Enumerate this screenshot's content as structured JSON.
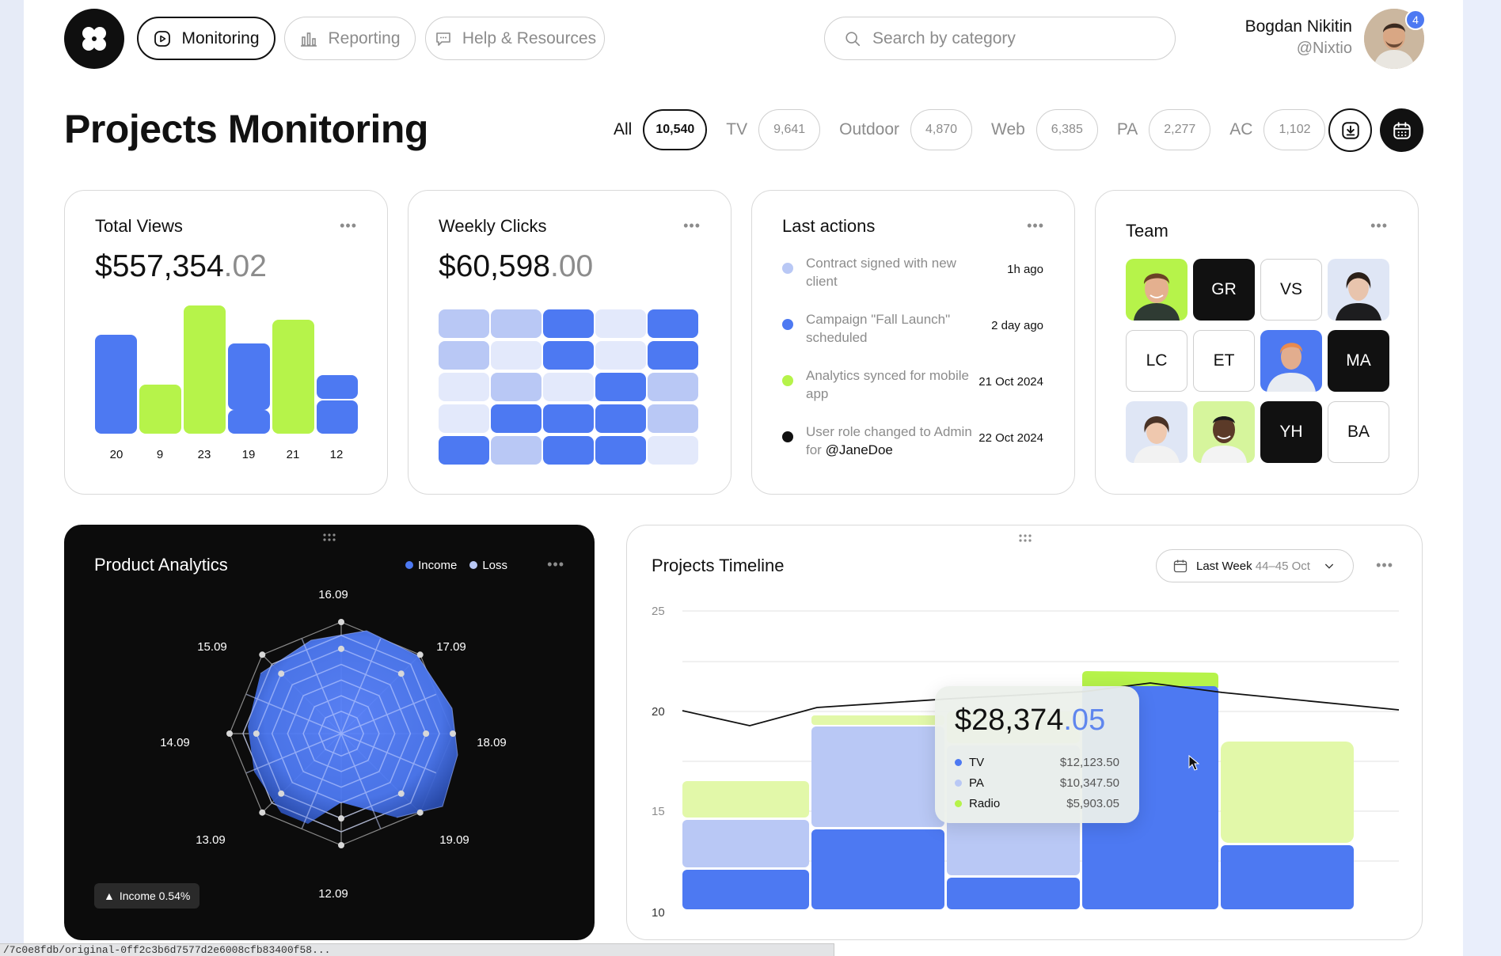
{
  "nav": {
    "items": [
      {
        "label": "Monitoring",
        "icon": "play-square-icon",
        "active": true
      },
      {
        "label": "Reporting",
        "icon": "bar-chart-icon",
        "active": false
      },
      {
        "label": "Help & Resources",
        "icon": "chat-bubble-icon",
        "active": false
      }
    ],
    "search_placeholder": "Search by category",
    "user": {
      "name": "Bogdan Nikitin",
      "handle": "@Nixtio",
      "notifications": "4"
    }
  },
  "page": {
    "title": "Projects Monitoring",
    "filters": [
      {
        "label": "All",
        "count": "10,540",
        "active": true
      },
      {
        "label": "TV",
        "count": "9,641",
        "active": false
      },
      {
        "label": "Outdoor",
        "count": "4,870",
        "active": false
      },
      {
        "label": "Web",
        "count": "6,385",
        "active": false
      },
      {
        "label": "PA",
        "count": "2,277",
        "active": false
      },
      {
        "label": "AC",
        "count": "1,102",
        "active": false
      }
    ]
  },
  "total_views": {
    "title": "Total Views",
    "amount_int": "$557,354",
    "amount_dec": ".02",
    "more": "•••"
  },
  "weekly_clicks": {
    "title": "Weekly Clicks",
    "amount_int": "$60,598",
    "amount_dec": ".00",
    "more": "•••",
    "levels": [
      [
        2,
        2,
        4,
        1,
        4
      ],
      [
        2,
        1,
        4,
        1,
        4
      ],
      [
        1,
        2,
        1,
        4,
        2
      ],
      [
        1,
        4,
        4,
        4,
        2
      ],
      [
        4,
        2,
        4,
        4,
        1
      ]
    ]
  },
  "last_actions": {
    "title": "Last actions",
    "more": "•••",
    "items": [
      {
        "text": "Contract signed with new client",
        "time": "1h ago",
        "color": "#b9c8f5"
      },
      {
        "text": "Campaign \"Fall Launch\" scheduled",
        "time": "2 day ago",
        "color": "#4d79f2"
      },
      {
        "text": "Analytics synced for mobile app",
        "time": "21 Oct 2024",
        "color": "#b6f34a"
      },
      {
        "text_before": "User role changed to Admin for ",
        "text_highlight": "@JaneDoe",
        "time": "22 Oct 2024",
        "color": "#111111"
      }
    ]
  },
  "team": {
    "title": "Team",
    "more": "•••",
    "members": [
      {
        "type": "photo",
        "bg": "#b6f34a",
        "name": "member-photo-1"
      },
      {
        "type": "initials",
        "style": "black",
        "initials": "GR"
      },
      {
        "type": "initials",
        "style": "white",
        "initials": "VS"
      },
      {
        "type": "photo",
        "bg": "#dfe6f5",
        "name": "member-photo-2"
      },
      {
        "type": "initials",
        "style": "white",
        "initials": "LC"
      },
      {
        "type": "initials",
        "style": "white",
        "initials": "ET"
      },
      {
        "type": "photo",
        "bg": "#4d79f2",
        "name": "member-photo-3"
      },
      {
        "type": "initials",
        "style": "black",
        "initials": "MA"
      },
      {
        "type": "photo",
        "bg": "#dfe6f5",
        "name": "member-photo-4"
      },
      {
        "type": "photo",
        "bg": "#d6f59c",
        "name": "member-photo-5"
      },
      {
        "type": "initials",
        "style": "black",
        "initials": "YH"
      },
      {
        "type": "initials",
        "style": "white",
        "initials": "BA"
      }
    ]
  },
  "product_analytics": {
    "title": "Product Analytics",
    "legend": [
      {
        "label": "Income",
        "color": "#4d79f2"
      },
      {
        "label": "Loss",
        "color": "#b9c8f5"
      }
    ],
    "more": "•••",
    "badge": "Income 0.54%"
  },
  "projects_timeline": {
    "title": "Projects Timeline",
    "dropdown_label": "Last Week",
    "dropdown_range": "44–45 Oct",
    "more": "•••",
    "tooltip": {
      "amount_int": "$28,374",
      "amount_dec": ".05",
      "rows": [
        {
          "label": "TV",
          "value": "$12,123.50",
          "color": "#4d79f2"
        },
        {
          "label": "PA",
          "value": "$10,347.50",
          "color": "#b9c8f5"
        },
        {
          "label": "Radio",
          "value": "$5,903.05",
          "color": "#b6f34a"
        }
      ]
    }
  },
  "colors": {
    "blue": "#4d79f2",
    "light_blue": "#b9c8f5",
    "lime": "#b6f34a",
    "pale_lime": "#e2f8a9",
    "dark": "#0c0c0c"
  },
  "status_bar": "/7c0e8fdb/original-0ff2c3b6d7577d2e6008cfb83400f58..."
}
